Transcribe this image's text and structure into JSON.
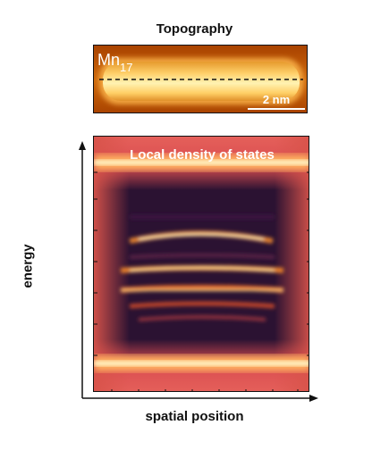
{
  "topography": {
    "title": "Topography",
    "molecule_label_base": "Mn",
    "molecule_label_sub": "17",
    "scale_bar_label": "2 nm"
  },
  "ldos": {
    "title": "Local density of states",
    "xlabel": "spatial position",
    "ylabel": "energy"
  },
  "colors": {
    "topo_background": "#c8600a",
    "topo_bright": "#fff4b0",
    "ldos_dark": "#2a1130",
    "ldos_bright": "#ffe7a0",
    "ldos_edge": "#e05a50"
  }
}
